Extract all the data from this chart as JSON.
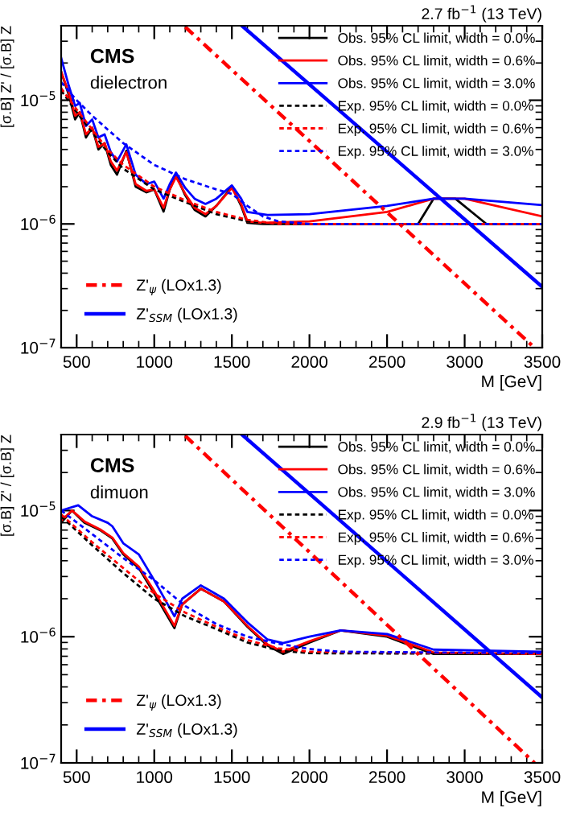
{
  "chart_data": [
    {
      "type": "line",
      "title": "2.7 fb$^{−1}$ (13 TeV)",
      "xlabel": "M [GeV]",
      "ylabel": "[σ.B] Z' / [σ.B] Z",
      "annotations": [
        "CMS",
        "dielectron"
      ],
      "log": "y",
      "legend": "top right",
      "xlim": [
        400,
        3500
      ],
      "xticks": [
        500,
        1000,
        1500,
        2000,
        2500,
        3000,
        3500
      ],
      "ylim": [
        1e-07,
        4e-05
      ],
      "yticks": [
        {
          "value": 1e-07,
          "label": "10$^{−7}$"
        },
        {
          "value": 1e-06,
          "label": "10$^{−6}$"
        },
        {
          "value": 1e-05,
          "label": "10$^{−5}$"
        }
      ],
      "series": [
        {
          "name": "Obs. 95% CL limit, width = 0.0%",
          "color": "#000000",
          "line_style": "solid",
          "x": [
            400,
            450,
            490,
            520,
            560,
            600,
            640,
            680,
            720,
            760,
            820,
            880,
            950,
            1000,
            1060,
            1100,
            1140,
            1200,
            1260,
            1330,
            1400,
            1500,
            1560,
            1600,
            1700,
            2000,
            2700,
            2800,
            2940,
            3140,
            3500
          ],
          "values": [
            1.7e-05,
            1.1e-05,
            7e-06,
            8e-06,
            5e-06,
            6e-06,
            4e-06,
            4.5e-06,
            3e-06,
            2.5e-06,
            3.9e-06,
            2e-06,
            1.8e-06,
            1.9e-06,
            1.26e-06,
            1.9e-06,
            2.5e-06,
            1.7e-06,
            1.3e-06,
            1.15e-06,
            1.4e-06,
            2e-06,
            1.4e-06,
            1.02e-06,
            1e-06,
            1e-06,
            1e-06,
            1.6e-06,
            1.6e-06,
            1e-06,
            1e-06
          ]
        },
        {
          "name": "Obs. 95% CL limit, width = 0.6%",
          "color": "#ff0000",
          "line_style": "solid",
          "x": [
            400,
            450,
            490,
            520,
            560,
            600,
            640,
            680,
            720,
            760,
            820,
            880,
            950,
            1000,
            1060,
            1100,
            1140,
            1200,
            1260,
            1330,
            1400,
            1500,
            1560,
            1600,
            1700,
            2000,
            2500,
            2800,
            3000,
            3500
          ],
          "values": [
            1.7e-05,
            1.15e-05,
            7.5e-06,
            8e-06,
            5.3e-06,
            6e-06,
            4.2e-06,
            4.5e-06,
            3.2e-06,
            2.7e-06,
            3.8e-06,
            2.1e-06,
            1.85e-06,
            1.9e-06,
            1.35e-06,
            1.9e-06,
            2.4e-06,
            1.75e-06,
            1.35e-06,
            1.2e-06,
            1.4e-06,
            1.95e-06,
            1.45e-06,
            1.05e-06,
            1.02e-06,
            1.05e-06,
            1.25e-06,
            1.6e-06,
            1.6e-06,
            1.15e-06
          ]
        },
        {
          "name": "Obs. 95% CL limit, width = 3.0%",
          "color": "#0000ff",
          "line_style": "solid",
          "x": [
            400,
            450,
            490,
            520,
            560,
            600,
            640,
            680,
            720,
            760,
            820,
            880,
            950,
            1000,
            1060,
            1100,
            1140,
            1200,
            1260,
            1330,
            1400,
            1500,
            1560,
            1600,
            1730,
            2000,
            2500,
            2800,
            3000,
            3500
          ],
          "values": [
            2.2e-05,
            1.3e-05,
            9e-06,
            9.5e-06,
            6.2e-06,
            7e-06,
            5e-06,
            5.3e-06,
            3.8e-06,
            3.2e-06,
            4.4e-06,
            2.5e-06,
            2.1e-06,
            2.2e-06,
            1.6e-06,
            2.1e-06,
            2.6e-06,
            1.95e-06,
            1.6e-06,
            1.45e-06,
            1.6e-06,
            2.05e-06,
            1.6e-06,
            1.25e-06,
            1.18e-06,
            1.2e-06,
            1.4e-06,
            1.6e-06,
            1.6e-06,
            1.42e-06
          ]
        },
        {
          "name": "Exp. 95% CL limit, width = 0.0%",
          "color": "#000000",
          "line_style": "dashed",
          "x": [
            400,
            500,
            600,
            700,
            800,
            1000,
            1200,
            1400,
            1600,
            1800,
            3500
          ],
          "values": [
            1.2e-05,
            8e-06,
            5.5e-06,
            3.8e-06,
            2.8e-06,
            1.9e-06,
            1.5e-06,
            1.2e-06,
            1.05e-06,
            1e-06,
            1e-06
          ]
        },
        {
          "name": "Exp. 95% CL limit, width = 0.6%",
          "color": "#ff0000",
          "line_style": "dashed",
          "x": [
            400,
            500,
            600,
            700,
            800,
            1000,
            1200,
            1400,
            1600,
            1800,
            3500
          ],
          "values": [
            1.25e-05,
            8.4e-06,
            5.8e-06,
            4e-06,
            3e-06,
            2e-06,
            1.55e-06,
            1.25e-06,
            1.08e-06,
            1e-06,
            1e-06
          ]
        },
        {
          "name": "Exp. 95% CL limit, width = 3.0%",
          "color": "#0000ff",
          "line_style": "dashed",
          "x": [
            400,
            500,
            600,
            700,
            800,
            1000,
            1200,
            1400,
            1500,
            1600,
            1700,
            1800,
            2000,
            3500
          ],
          "values": [
            1.4e-05,
            1e-05,
            7.5e-06,
            5.8e-06,
            4.5e-06,
            3e-06,
            2.3e-06,
            1.9e-06,
            1.75e-06,
            1.4e-06,
            1.15e-06,
            1.05e-06,
            1e-06,
            1e-06
          ]
        },
        {
          "name": "Z'$_{ψ}$ (LOx1.3)",
          "color": "#ff0000",
          "line_style": "dashdot",
          "x": [
            1200,
            3450
          ],
          "values": [
            3.9e-05,
            1e-07
          ]
        },
        {
          "name": "Z'$_{SSM}$ (LOx1.3)",
          "color": "#0000ff",
          "line_style": "solid",
          "x": [
            1565,
            3500
          ],
          "values": [
            4e-05,
            3.1e-07
          ]
        }
      ]
    },
    {
      "type": "line",
      "title": "2.9 fb$^{−1}$ (13 TeV)",
      "xlabel": "M [GeV]",
      "ylabel": "[σ.B] Z' / [σ.B] Z",
      "annotations": [
        "CMS",
        "dimuon"
      ],
      "log": "y",
      "legend": "top right",
      "xlim": [
        400,
        3500
      ],
      "xticks": [
        500,
        1000,
        1500,
        2000,
        2500,
        3000,
        3500
      ],
      "ylim": [
        1e-07,
        4e-05
      ],
      "yticks": [
        {
          "value": 1e-07,
          "label": "10$^{−7}$"
        },
        {
          "value": 1e-06,
          "label": "10$^{−6}$"
        },
        {
          "value": 1e-05,
          "label": "10$^{−5}$"
        }
      ],
      "series": [
        {
          "name": "Obs. 95% CL limit, width = 0.0%",
          "color": "#000000",
          "line_style": "solid",
          "x": [
            400,
            470,
            550,
            650,
            730,
            800,
            900,
            1000,
            1130,
            1180,
            1300,
            1450,
            1600,
            1730,
            1830,
            2000,
            2200,
            2500,
            2800,
            3500
          ],
          "values": [
            8e-06,
            1e-05,
            8e-06,
            7e-06,
            6e-06,
            4.5e-06,
            3.5e-06,
            2.2e-06,
            1.17e-06,
            1.8e-06,
            2.4e-06,
            1.9e-06,
            1.2e-06,
            8.5e-07,
            7.3e-07,
            9e-07,
            1.12e-06,
            1e-06,
            7.3e-07,
            7.3e-07
          ]
        },
        {
          "name": "Obs. 95% CL limit, width = 0.6%",
          "color": "#ff0000",
          "line_style": "solid",
          "x": [
            400,
            470,
            550,
            650,
            730,
            800,
            900,
            1000,
            1130,
            1180,
            1300,
            1450,
            1600,
            1730,
            1830,
            2000,
            2200,
            2500,
            2800,
            3500
          ],
          "values": [
            8.3e-06,
            1e-05,
            8.2e-06,
            7.1e-06,
            6.1e-06,
            4.6e-06,
            3.6e-06,
            2.3e-06,
            1.22e-06,
            1.8e-06,
            2.4e-06,
            1.9e-06,
            1.22e-06,
            8.7e-07,
            7.6e-07,
            9.2e-07,
            1.12e-06,
            1.02e-06,
            7.5e-07,
            7.3e-07
          ]
        },
        {
          "name": "Obs. 95% CL limit, width = 3.0%",
          "color": "#0000ff",
          "line_style": "solid",
          "x": [
            400,
            510,
            600,
            700,
            730,
            800,
            900,
            1000,
            1130,
            1180,
            1300,
            1450,
            1600,
            1730,
            1830,
            2000,
            2200,
            2500,
            2800,
            3500
          ],
          "values": [
            1e-05,
            1.1e-05,
            9e-06,
            8e-06,
            7.5e-06,
            5.5e-06,
            4.5e-06,
            2.8e-06,
            1.45e-06,
            2e-06,
            2.55e-06,
            2e-06,
            1.3e-06,
            9.5e-07,
            8.9e-07,
            1e-06,
            1.12e-06,
            1.05e-06,
            7.9e-07,
            7.6e-07
          ]
        },
        {
          "name": "Exp. 95% CL limit, width = 0.0%",
          "color": "#000000",
          "line_style": "dashed",
          "x": [
            400,
            600,
            800,
            1000,
            1200,
            1400,
            1600,
            1800,
            2000,
            3500
          ],
          "values": [
            9e-06,
            5.3e-06,
            3.2e-06,
            2e-06,
            1.45e-06,
            1.15e-06,
            9e-07,
            7.8e-07,
            7.4e-07,
            7.3e-07
          ]
        },
        {
          "name": "Exp. 95% CL limit, width = 0.6%",
          "color": "#ff0000",
          "line_style": "dashed",
          "x": [
            400,
            600,
            800,
            1000,
            1200,
            1400,
            1600,
            1800,
            2000,
            3500
          ],
          "values": [
            9.3e-06,
            5.6e-06,
            3.5e-06,
            2.2e-06,
            1.55e-06,
            1.2e-06,
            9.4e-07,
            8.1e-07,
            7.6e-07,
            7.3e-07
          ]
        },
        {
          "name": "Exp. 95% CL limit, width = 3.0%",
          "color": "#0000ff",
          "line_style": "dashed",
          "x": [
            400,
            600,
            800,
            1000,
            1200,
            1400,
            1600,
            1800,
            2000,
            2200,
            3500
          ],
          "values": [
            1e-05,
            6.5e-06,
            4.2e-06,
            2.8e-06,
            1.75e-06,
            1.26e-06,
            1e-06,
            8.8e-07,
            8e-07,
            7.6e-07,
            7.4e-07
          ]
        },
        {
          "name": "Z'$_{ψ}$ (LOx1.3)",
          "color": "#ff0000",
          "line_style": "dashdot",
          "x": [
            1200,
            3450
          ],
          "values": [
            3.9e-05,
            1e-07
          ]
        },
        {
          "name": "Z'$_{SSM}$ (LOx1.3)",
          "color": "#0000ff",
          "line_style": "solid",
          "x": [
            1565,
            3500
          ],
          "values": [
            4e-05,
            3.3e-07
          ]
        }
      ]
    }
  ]
}
